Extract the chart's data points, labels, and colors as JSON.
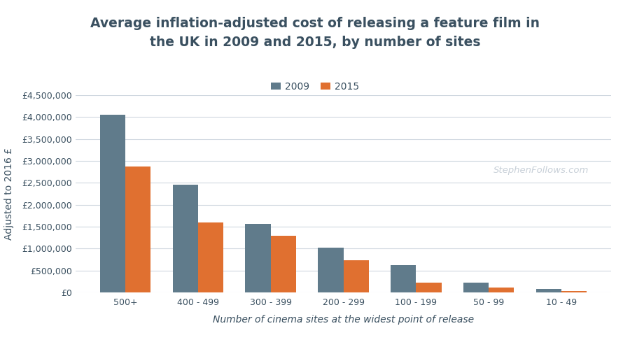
{
  "title": "Average inflation-adjusted cost of releasing a feature film in\nthe UK in 2009 and 2015, by number of sites",
  "xlabel": "Number of cinema sites at the widest point of release",
  "ylabel": "Adjusted to 2016 £",
  "watermark": "StephenFollows.com",
  "categories": [
    "500+",
    "400 - 499",
    "300 - 399",
    "200 - 299",
    "100 - 199",
    "50 - 99",
    "10 - 49"
  ],
  "values_2009": [
    4050000,
    2450000,
    1570000,
    1020000,
    620000,
    230000,
    75000
  ],
  "values_2015": [
    2880000,
    1590000,
    1290000,
    730000,
    220000,
    105000,
    30000
  ],
  "color_2009": "#607B8B",
  "color_2015": "#E07030",
  "background_color": "#ffffff",
  "grid_color": "#d0d8e0",
  "title_color": "#3a5060",
  "axis_label_color": "#3a5060",
  "tick_color": "#3a5060",
  "watermark_color": "#c8d0d8",
  "ylim": [
    0,
    4500000
  ],
  "yticks": [
    0,
    500000,
    1000000,
    1500000,
    2000000,
    2500000,
    3000000,
    3500000,
    4000000,
    4500000
  ],
  "legend_labels": [
    "2009",
    "2015"
  ],
  "title_fontsize": 13.5,
  "axis_label_fontsize": 10,
  "tick_fontsize": 9,
  "bar_width": 0.35
}
